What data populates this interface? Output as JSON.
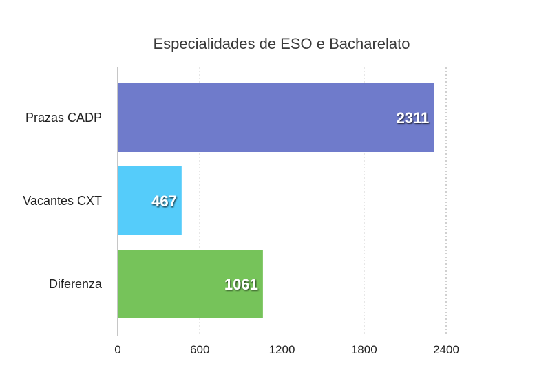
{
  "chart_data": {
    "type": "bar",
    "orientation": "horizontal",
    "title": "Especialidades de ESO e Bacharelato",
    "categories": [
      "Prazas CADP",
      "Vacantes CXT",
      "Diferenza"
    ],
    "values": [
      2311,
      467,
      1061
    ],
    "value_labels": [
      "2311",
      "467",
      "1061"
    ],
    "colors": [
      "#6f7bcb",
      "#55ccfa",
      "#76c35a"
    ],
    "xlim": [
      0,
      2400
    ],
    "xticks": [
      0,
      600,
      1200,
      1800,
      2400
    ],
    "xtick_labels": [
      "0",
      "600",
      "1200",
      "1800",
      "2400"
    ],
    "xlabel": "",
    "ylabel": "",
    "grid": "vertical dashed",
    "legend": "none"
  }
}
